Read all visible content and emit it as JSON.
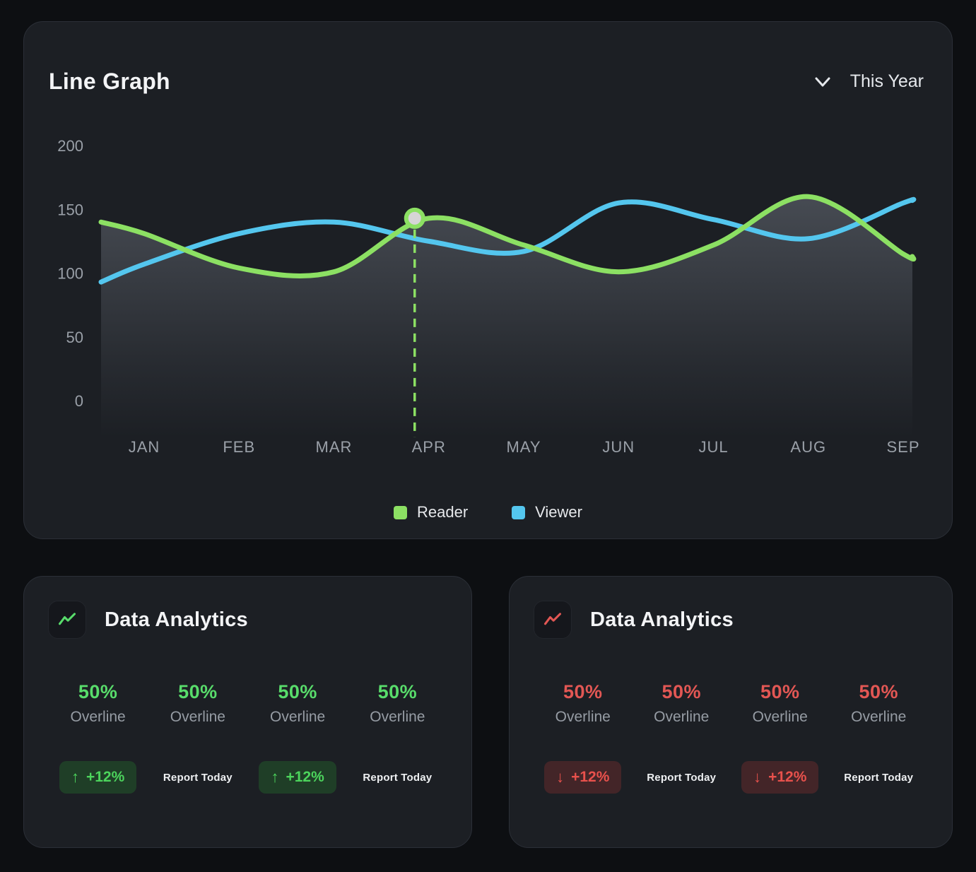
{
  "colors": {
    "page_bg": "#0d0f12",
    "card_bg": "#1c1f24",
    "reader_green": "#8ce063",
    "viewer_blue": "#54c6ee",
    "positive_green": "#58dc6b",
    "negative_red": "#e25754"
  },
  "line_graph_card": {
    "title": "Line Graph",
    "period_selector": {
      "label": "This Year",
      "icon": "chevron-down"
    },
    "legend": [
      {
        "label": "Reader",
        "color": "#8ce063"
      },
      {
        "label": "Viewer",
        "color": "#54c6ee"
      }
    ]
  },
  "chart_data": {
    "type": "line",
    "title": "Line Graph",
    "x_categories": [
      "JAN",
      "FEB",
      "MAR",
      "APR",
      "MAY",
      "JUN",
      "JUL",
      "AUG",
      "SEP"
    ],
    "yticks": [
      0,
      50,
      100,
      150,
      200
    ],
    "ylim": [
      0,
      200
    ],
    "grid": false,
    "legend_position": "bottom-center",
    "series": [
      {
        "name": "Reader",
        "color": "#8ce063",
        "values": [
          131,
          104,
          101,
          143,
          122,
          101,
          122,
          160,
          115
        ],
        "edge_start": 140,
        "edge_end": 113,
        "area_fill": true
      },
      {
        "name": "Viewer",
        "color": "#54c6ee",
        "values": [
          107,
          131,
          140,
          125,
          117,
          155,
          142,
          127,
          155
        ],
        "edge_start": 93,
        "edge_end": 157,
        "area_fill": false
      }
    ],
    "highlight": {
      "series": "Reader",
      "category": "APR",
      "value": 143,
      "marker": "dot-with-dashed-line"
    }
  },
  "analytics_cards": [
    {
      "title": "Data Analytics",
      "trend": "up",
      "accent": "#58dc6b",
      "stats": [
        {
          "value": "50%",
          "label": "Overline"
        },
        {
          "value": "50%",
          "label": "Overline"
        },
        {
          "value": "50%",
          "label": "Overline"
        },
        {
          "value": "50%",
          "label": "Overline"
        }
      ],
      "footer": {
        "badge_arrow": "↑",
        "badge_text": "+12%",
        "report_label": "Report Today"
      }
    },
    {
      "title": "Data Analytics",
      "trend": "down",
      "accent": "#e25754",
      "stats": [
        {
          "value": "50%",
          "label": "Overline"
        },
        {
          "value": "50%",
          "label": "Overline"
        },
        {
          "value": "50%",
          "label": "Overline"
        },
        {
          "value": "50%",
          "label": "Overline"
        }
      ],
      "footer": {
        "badge_arrow": "↓",
        "badge_text": "+12%",
        "report_label": "Report Today"
      }
    }
  ]
}
